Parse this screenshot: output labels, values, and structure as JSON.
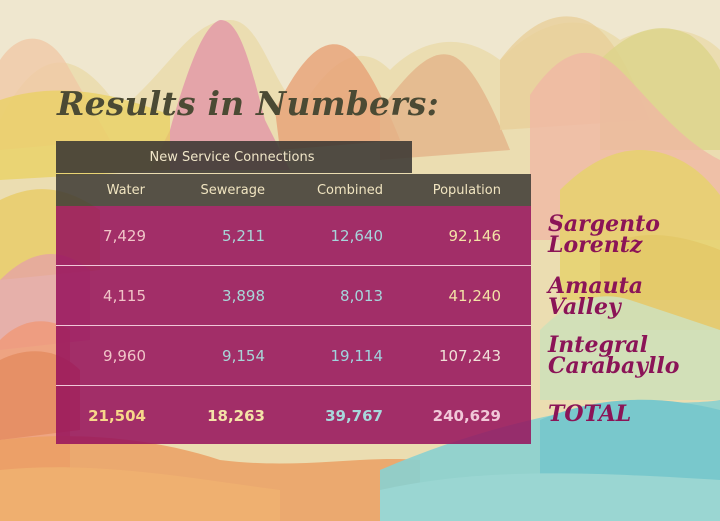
{
  "title": "Results in Numbers:",
  "group_header": "New Service Connections",
  "columns": [
    "Water",
    "Sewerage",
    "Combined",
    "Population"
  ],
  "rows": [
    {
      "label_line1": "Sargento",
      "label_line2": "Lorentz",
      "water": "7,429",
      "sewerage": "5,211",
      "combined": "12,640",
      "population": "92,146"
    },
    {
      "label_line1": "Amauta",
      "label_line2": "Valley",
      "water": "4,115",
      "sewerage": "3,898",
      "combined": "8,013",
      "population": "41,240"
    },
    {
      "label_line1": "Integral",
      "label_line2": "Carabayllo",
      "water": "9,960",
      "sewerage": "9,154",
      "combined": "19,114",
      "population": "107,243"
    }
  ],
  "total": {
    "label": "TOTAL",
    "water": "21,504",
    "sewerage": "18,263",
    "combined": "39,767",
    "population": "240,629"
  },
  "colors": {
    "table_magenta": "#96125c",
    "header_dark": "#3a3732",
    "label_magenta": "#8b1457",
    "title": "#4b4a34",
    "sky": "#efe7cf"
  }
}
